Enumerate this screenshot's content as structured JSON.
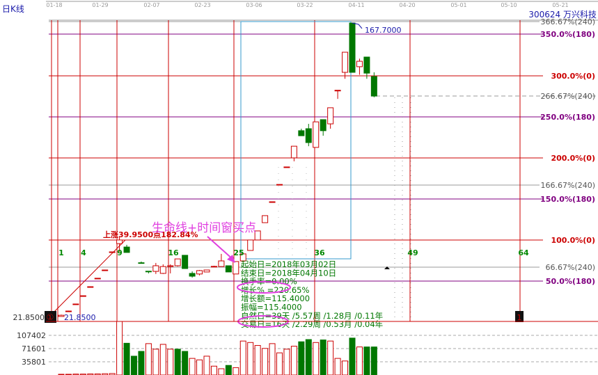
{
  "header": {
    "chart_type_label": "日K线",
    "stock": "300624  万兴科技"
  },
  "dates": [
    "01-18",
    "01-29",
    "02-07",
    "02-23",
    "03-06",
    "03-22",
    "04-11",
    "04-20",
    "05-01",
    "05-10",
    "05-21"
  ],
  "price_levels": [
    {
      "label": "366.67%(240)",
      "kind": "gray"
    },
    {
      "label": "350.0%(180)",
      "kind": "purple"
    },
    {
      "label": "300.0%(0)",
      "kind": "red"
    },
    {
      "label": "266.67%(240)",
      "kind": "gray"
    },
    {
      "label": "250.0%(180)",
      "kind": "purple"
    },
    {
      "label": "200.0%(0)",
      "kind": "red"
    },
    {
      "label": "166.67%(240)",
      "kind": "gray"
    },
    {
      "label": "150.0%(180)",
      "kind": "purple"
    },
    {
      "label": "100.0%(0)",
      "kind": "red"
    },
    {
      "label": "66.67%(240)",
      "kind": "gray"
    },
    {
      "label": "50.0%(180)",
      "kind": "purple"
    }
  ],
  "colors": {
    "up": "#cc0000",
    "down": "#007700",
    "purple": "#800080",
    "red": "#cc0000",
    "gray": "#999999",
    "box": "#3399cc",
    "annotation": "#e040e0",
    "info": "#007700",
    "blue_text": "#1a1aaa"
  },
  "day_counters": [
    "1",
    "4",
    "9",
    "16",
    "25",
    "36",
    "49",
    "64"
  ],
  "labels": {
    "high_price": "167.7000",
    "low_price": "21.8500",
    "low_axis": "21.8500",
    "rise": "上涨39.9500点182.84%",
    "annotation": "生命线+时间窗买点",
    "marker_1": "①",
    "marker_end": "1"
  },
  "info_box": [
    "起始日=2018年03月02日",
    "结束日=2018年04月10日",
    "换手率=0.00%",
    "增长% =220.65%",
    "增长额=115.4000",
    "振幅=115.4000",
    "自然日=39天 /5.57周 /1.28月 /0.11年",
    "交易日=16天 /2.29周 /0.53月 /0.04年"
  ],
  "volume_axis": [
    "107402",
    "71601",
    "35801"
  ],
  "chart_data": {
    "type": "candlestick",
    "candles": [
      {
        "d": 1,
        "o": 21.9,
        "c": 22.5,
        "h": 22.8,
        "l": 21.85
      },
      {
        "d": 2,
        "o": 24.4,
        "c": 24.6,
        "h": 24.8,
        "l": 24.4
      },
      {
        "d": 3,
        "o": 28.0,
        "c": 28.1,
        "h": 28.2,
        "l": 28.0
      },
      {
        "d": 4,
        "o": 32.1,
        "c": 32.2,
        "h": 32.3,
        "l": 32.1
      },
      {
        "d": 5,
        "o": 36.6,
        "c": 36.7,
        "h": 36.8,
        "l": 36.6
      },
      {
        "d": 6,
        "o": 40.8,
        "c": 40.9,
        "h": 41.0,
        "l": 40.8
      },
      {
        "d": 7,
        "o": 44.9,
        "c": 45.0,
        "h": 45.1,
        "l": 44.9
      },
      {
        "d": 8,
        "o": 53.9,
        "c": 54.0,
        "h": 54.1,
        "l": 53.9
      },
      {
        "d": 9,
        "o": 58.1,
        "c": 59.9,
        "h": 61.8,
        "l": 54.0
      },
      {
        "d": 10,
        "o": 56.4,
        "c": 53.7,
        "h": 57.5,
        "l": 53.7
      },
      {
        "d": 12,
        "o": 48.6,
        "c": 48.5,
        "h": 49.2,
        "l": 48.5
      },
      {
        "d": 13,
        "o": 44.4,
        "c": 44.3,
        "h": 44.4,
        "l": 43.3
      },
      {
        "d": 14,
        "o": 44.3,
        "c": 47.1,
        "h": 48.5,
        "l": 43.0
      },
      {
        "d": 15,
        "o": 43.3,
        "c": 46.7,
        "h": 47.8,
        "l": 43.0
      },
      {
        "d": 16,
        "o": 46.7,
        "c": 47.1,
        "h": 47.8,
        "l": 43.3
      },
      {
        "d": 17,
        "o": 47.1,
        "c": 50.5,
        "h": 50.5,
        "l": 46.7
      },
      {
        "d": 18,
        "o": 52.3,
        "c": 45.7,
        "h": 52.3,
        "l": 45.7
      },
      {
        "d": 19,
        "o": 43.3,
        "c": 41.9,
        "h": 44.3,
        "l": 41.2
      },
      {
        "d": 20,
        "o": 43.0,
        "c": 44.7,
        "h": 45.0,
        "l": 42.3
      },
      {
        "d": 21,
        "o": 44.0,
        "c": 45.0,
        "h": 45.0,
        "l": 44.0
      },
      {
        "d": 22,
        "o": 46.7,
        "c": 46.8,
        "h": 47.1,
        "l": 46.4
      },
      {
        "d": 23,
        "o": 46.7,
        "c": 49.5,
        "h": 53.0,
        "l": 46.7
      },
      {
        "d": 24,
        "o": 47.1,
        "c": 44.0,
        "h": 47.1,
        "l": 44.0
      },
      {
        "d": 25,
        "o": 43.0,
        "c": 49.2,
        "h": 49.2,
        "l": 43.0
      },
      {
        "d": 26,
        "o": 49.5,
        "c": 53.0,
        "h": 53.0,
        "l": 49.5
      },
      {
        "d": 27,
        "o": 54.7,
        "c": 59.9,
        "h": 59.9,
        "l": 54.7
      },
      {
        "d": 28,
        "o": 59.9,
        "c": 64.4,
        "h": 64.4,
        "l": 59.9
      },
      {
        "d": 29,
        "o": 68.5,
        "c": 72.0,
        "h": 72.0,
        "l": 68.5
      },
      {
        "d": 30,
        "o": 78.8,
        "c": 78.9,
        "h": 78.9,
        "l": 78.8
      },
      {
        "d": 31,
        "o": 87.4,
        "c": 87.5,
        "h": 87.5,
        "l": 87.4
      },
      {
        "d": 32,
        "o": 96.1,
        "c": 96.2,
        "h": 96.2,
        "l": 96.1
      },
      {
        "d": 33,
        "o": 100.7,
        "c": 106.5,
        "h": 106.5,
        "l": 99.0
      },
      {
        "d": 34,
        "o": 114.2,
        "c": 111.7,
        "h": 115.2,
        "l": 111.7
      },
      {
        "d": 35,
        "o": 115.2,
        "c": 108.3,
        "h": 117.6,
        "l": 106.5
      },
      {
        "d": 36,
        "o": 105.9,
        "c": 118.6,
        "h": 118.6,
        "l": 105.9
      },
      {
        "d": 37,
        "o": 119.7,
        "c": 114.2,
        "h": 119.7,
        "l": 111.7
      },
      {
        "d": 38,
        "o": 117.6,
        "c": 125.6,
        "h": 125.6,
        "l": 115.2
      },
      {
        "d": 39,
        "o": 134.2,
        "c": 134.3,
        "h": 134.3,
        "l": 130.0
      },
      {
        "d": 40,
        "o": 143.2,
        "c": 153.2,
        "h": 153.2,
        "l": 140.0
      },
      {
        "d": 41,
        "o": 167.7,
        "c": 143.2,
        "h": 167.7,
        "l": 143.2
      },
      {
        "d": 42,
        "o": 146.0,
        "c": 148.7,
        "h": 150.0,
        "l": 142.0
      },
      {
        "d": 43,
        "o": 150.8,
        "c": 142.8,
        "h": 150.8,
        "l": 140.0
      },
      {
        "d": 44,
        "o": 141.1,
        "c": 131.4,
        "h": 143.2,
        "l": 130.8
      }
    ],
    "volume": [
      {
        "d": 1,
        "v": 2000,
        "up": true
      },
      {
        "d": 2,
        "v": 2000,
        "up": true
      },
      {
        "d": 3,
        "v": 2500,
        "up": true
      },
      {
        "d": 4,
        "v": 2500,
        "up": true
      },
      {
        "d": 5,
        "v": 3000,
        "up": true
      },
      {
        "d": 6,
        "v": 3000,
        "up": true
      },
      {
        "d": 7,
        "v": 3500,
        "up": true
      },
      {
        "d": 8,
        "v": 4000,
        "up": true
      },
      {
        "d": 9,
        "v": 150000,
        "up": true
      },
      {
        "d": 10,
        "v": 86000,
        "up": false
      },
      {
        "d": 11,
        "v": 51000,
        "up": false
      },
      {
        "d": 12,
        "v": 64000,
        "up": false
      },
      {
        "d": 13,
        "v": 85000,
        "up": true
      },
      {
        "d": 14,
        "v": 70000,
        "up": true
      },
      {
        "d": 15,
        "v": 83000,
        "up": true
      },
      {
        "d": 16,
        "v": 70000,
        "up": true
      },
      {
        "d": 17,
        "v": 70000,
        "up": false
      },
      {
        "d": 18,
        "v": 64000,
        "up": false
      },
      {
        "d": 19,
        "v": 45000,
        "up": true
      },
      {
        "d": 20,
        "v": 41000,
        "up": true
      },
      {
        "d": 21,
        "v": 51000,
        "up": true
      },
      {
        "d": 22,
        "v": 24000,
        "up": true
      },
      {
        "d": 23,
        "v": 17000,
        "up": true
      },
      {
        "d": 24,
        "v": 26000,
        "up": false
      },
      {
        "d": 25,
        "v": 20000,
        "up": true
      },
      {
        "d": 26,
        "v": 92000,
        "up": true
      },
      {
        "d": 27,
        "v": 88000,
        "up": true
      },
      {
        "d": 28,
        "v": 80000,
        "up": true
      },
      {
        "d": 29,
        "v": 72000,
        "up": true
      },
      {
        "d": 30,
        "v": 85000,
        "up": true
      },
      {
        "d": 31,
        "v": 60000,
        "up": true
      },
      {
        "d": 32,
        "v": 70000,
        "up": true
      },
      {
        "d": 33,
        "v": 78000,
        "up": true
      },
      {
        "d": 34,
        "v": 90000,
        "up": false
      },
      {
        "d": 35,
        "v": 96000,
        "up": false
      },
      {
        "d": 36,
        "v": 88000,
        "up": true
      },
      {
        "d": 37,
        "v": 95000,
        "up": false
      },
      {
        "d": 38,
        "v": 92000,
        "up": true
      },
      {
        "d": 39,
        "v": 45000,
        "up": true
      },
      {
        "d": 40,
        "v": 38000,
        "up": true
      },
      {
        "d": 41,
        "v": 100000,
        "up": false
      },
      {
        "d": 42,
        "v": 76000,
        "up": true
      },
      {
        "d": 43,
        "v": 76000,
        "up": false
      },
      {
        "d": 44,
        "v": 76000,
        "up": false
      }
    ]
  }
}
